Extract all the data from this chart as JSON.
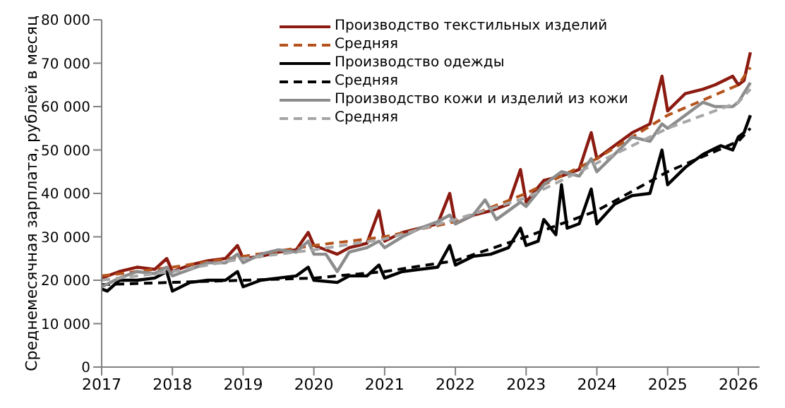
{
  "chart_data": {
    "type": "line",
    "ylabel": "Среднемесячная зарплата, рублей в месяц",
    "xlim": [
      2017,
      2026.3
    ],
    "xticks": [
      2017,
      2018,
      2019,
      2020,
      2021,
      2022,
      2023,
      2024,
      2025,
      2026
    ],
    "ylim": [
      0,
      80000
    ],
    "yticks": [
      {
        "value": 0,
        "label": "0"
      },
      {
        "value": 10000,
        "label": "10 000"
      },
      {
        "value": 20000,
        "label": "20 000"
      },
      {
        "value": 30000,
        "label": "30 000"
      },
      {
        "value": 40000,
        "label": "40 000"
      },
      {
        "value": 50000,
        "label": "50 000"
      },
      {
        "value": 60000,
        "label": "60 000"
      },
      {
        "value": 70000,
        "label": "70 000"
      },
      {
        "value": 80000,
        "label": "80 000"
      }
    ],
    "grid": false,
    "legend": "top left",
    "marker": "none",
    "series": [
      {
        "name": "Производство текстильных изделий",
        "color": "#8b1a10",
        "line_style": "solid",
        "x": [
          2017.0,
          2017.25,
          2017.5,
          2017.75,
          2017.92,
          2018.0,
          2018.25,
          2018.5,
          2018.75,
          2018.92,
          2019.0,
          2019.25,
          2019.5,
          2019.75,
          2019.92,
          2020.0,
          2020.17,
          2020.33,
          2020.5,
          2020.75,
          2020.92,
          2021.0,
          2021.25,
          2021.5,
          2021.75,
          2021.92,
          2022.0,
          2022.25,
          2022.5,
          2022.75,
          2022.92,
          2023.0,
          2023.25,
          2023.5,
          2023.75,
          2023.92,
          2024.0,
          2024.25,
          2024.5,
          2024.75,
          2024.92,
          2025.0,
          2025.25,
          2025.5,
          2025.67,
          2025.92,
          2026.0,
          2026.08,
          2026.17
        ],
        "values": [
          20500,
          22000,
          23000,
          22500,
          25000,
          22000,
          23500,
          24500,
          25000,
          28000,
          25000,
          25500,
          26500,
          27000,
          31000,
          28000,
          27000,
          26000,
          27500,
          28500,
          36000,
          29000,
          31000,
          32000,
          33000,
          40000,
          33000,
          35000,
          36000,
          37500,
          45500,
          38000,
          43000,
          44000,
          45500,
          54000,
          48000,
          51000,
          54000,
          56000,
          67000,
          59000,
          63000,
          64000,
          65000,
          67000,
          65000,
          66000,
          72500
        ]
      },
      {
        "name": "Средняя",
        "color": "#b5531c",
        "line_style": "dashed",
        "x": [
          2017.0,
          2018.0,
          2019.0,
          2020.0,
          2021.0,
          2022.0,
          2023.0,
          2024.0,
          2025.0,
          2026.0,
          2026.17
        ],
        "values": [
          21000,
          23000,
          25500,
          28000,
          30000,
          33500,
          40000,
          48000,
          58000,
          65000,
          69000
        ]
      },
      {
        "name": "Производство одежды",
        "color": "#000000",
        "line_style": "solid",
        "x": [
          2017.0,
          2017.08,
          2017.25,
          2017.5,
          2017.75,
          2017.92,
          2018.0,
          2018.25,
          2018.5,
          2018.75,
          2018.92,
          2019.0,
          2019.25,
          2019.5,
          2019.75,
          2019.92,
          2020.0,
          2020.33,
          2020.5,
          2020.75,
          2020.92,
          2021.0,
          2021.25,
          2021.5,
          2021.75,
          2021.92,
          2022.0,
          2022.25,
          2022.5,
          2022.75,
          2022.92,
          2023.0,
          2023.17,
          2023.25,
          2023.42,
          2023.5,
          2023.58,
          2023.75,
          2023.92,
          2024.0,
          2024.25,
          2024.5,
          2024.75,
          2024.92,
          2025.0,
          2025.25,
          2025.5,
          2025.75,
          2025.92,
          2026.0,
          2026.08,
          2026.17
        ],
        "values": [
          18000,
          17500,
          20000,
          20000,
          20500,
          22000,
          17500,
          19500,
          20000,
          20000,
          22000,
          18500,
          20000,
          20500,
          21000,
          23000,
          20000,
          19500,
          21000,
          21000,
          23500,
          20500,
          22000,
          22500,
          23000,
          28000,
          23500,
          25500,
          26000,
          27500,
          32000,
          28000,
          29000,
          34000,
          30500,
          42000,
          32000,
          33000,
          41000,
          33000,
          37500,
          39500,
          40000,
          50000,
          42000,
          46000,
          49000,
          51000,
          50000,
          53000,
          54000,
          58000
        ]
      },
      {
        "name": "Средняя",
        "color": "#000000",
        "line_style": "dashed",
        "x": [
          2017.0,
          2018.0,
          2019.0,
          2020.0,
          2021.0,
          2022.0,
          2023.0,
          2024.0,
          2025.0,
          2026.0,
          2026.17
        ],
        "values": [
          19000,
          19500,
          20000,
          20500,
          22000,
          24500,
          30000,
          36000,
          45000,
          52000,
          55000
        ]
      },
      {
        "name": "Производство кожи и изделий из кожи",
        "color": "#8c8c8c",
        "line_style": "solid",
        "x": [
          2017.0,
          2017.25,
          2017.5,
          2017.75,
          2017.92,
          2018.0,
          2018.25,
          2018.5,
          2018.75,
          2018.92,
          2019.0,
          2019.25,
          2019.5,
          2019.75,
          2019.92,
          2020.0,
          2020.17,
          2020.33,
          2020.5,
          2020.75,
          2020.92,
          2021.0,
          2021.25,
          2021.5,
          2021.75,
          2021.92,
          2022.0,
          2022.25,
          2022.42,
          2022.58,
          2022.75,
          2022.92,
          2023.0,
          2023.25,
          2023.5,
          2023.75,
          2023.92,
          2024.0,
          2024.25,
          2024.5,
          2024.75,
          2024.92,
          2025.0,
          2025.25,
          2025.5,
          2025.67,
          2025.92,
          2026.0,
          2026.17
        ],
        "values": [
          18500,
          20500,
          22000,
          21500,
          23000,
          21000,
          22500,
          24000,
          24000,
          26000,
          24000,
          26000,
          27000,
          26500,
          29000,
          26000,
          26000,
          22000,
          26500,
          27500,
          29000,
          27500,
          30000,
          32000,
          33500,
          35000,
          33000,
          35000,
          38500,
          34000,
          36000,
          38000,
          37000,
          42000,
          45000,
          44000,
          48000,
          45000,
          49000,
          53000,
          52000,
          56000,
          55000,
          58000,
          61000,
          60000,
          60000,
          61000,
          65500
        ]
      },
      {
        "name": "Средняя",
        "color": "#a6a6a6",
        "line_style": "dashed",
        "x": [
          2017.0,
          2018.0,
          2019.0,
          2020.0,
          2021.0,
          2022.0,
          2023.0,
          2024.0,
          2025.0,
          2026.0,
          2026.17
        ],
        "values": [
          20000,
          22000,
          25000,
          27000,
          29500,
          34000,
          39000,
          47000,
          55000,
          61000,
          64000
        ]
      }
    ]
  }
}
